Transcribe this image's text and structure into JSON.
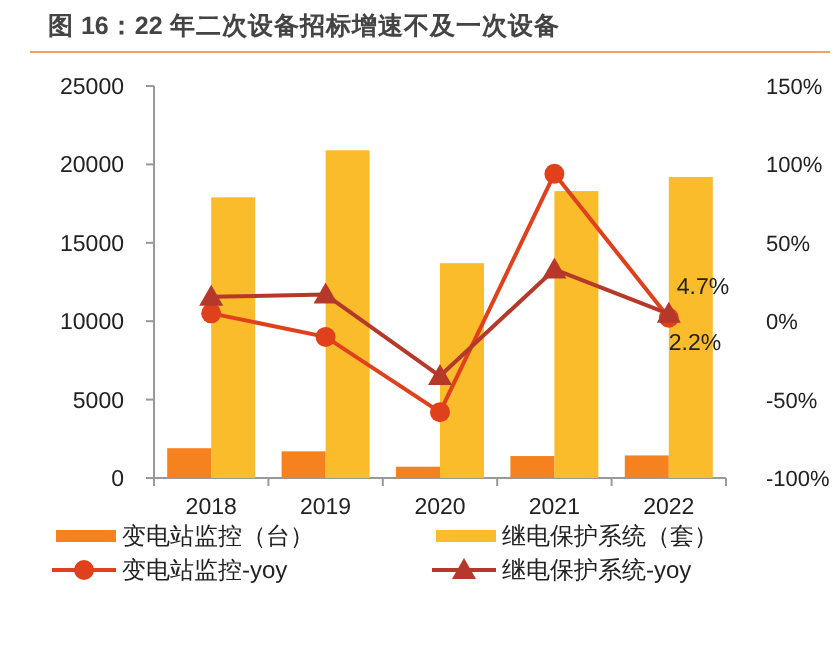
{
  "chart_data": {
    "type": "bar",
    "title": "图 16：22 年二次设备招标增速不及一次设备",
    "categories": [
      "2018",
      "2019",
      "2020",
      "2021",
      "2022"
    ],
    "series": [
      {
        "name": "变电站监控（台）",
        "color": "#f5821f",
        "values": [
          1900,
          1700,
          720,
          1400,
          1440
        ]
      },
      {
        "name": "继电保护系统（套）",
        "color": "#fbbc2c",
        "values": [
          17900,
          20900,
          13700,
          18300,
          19200
        ]
      },
      {
        "name": "变电站监控-yoy",
        "type": "line",
        "axis": "y2",
        "marker": "circle",
        "color": "#e0401b",
        "values": [
          5,
          -10,
          -58,
          94,
          2.2
        ],
        "value_labels": [
          null,
          null,
          null,
          null,
          "2.2%"
        ]
      },
      {
        "name": "继电保护系统-yoy",
        "type": "line",
        "axis": "y2",
        "marker": "triangle",
        "color": "#b5382a",
        "values": [
          15.6,
          17,
          -35,
          33,
          4.7
        ],
        "value_labels": [
          null,
          null,
          null,
          null,
          "4.7%"
        ]
      }
    ],
    "ylim": [
      0,
      25000
    ],
    "yticks": [
      0,
      5000,
      10000,
      15000,
      20000,
      25000
    ],
    "y2lim": [
      -100,
      150
    ],
    "y2ticks": [
      {
        "value": -100,
        "label": "-100%"
      },
      {
        "value": -50,
        "label": "-50%"
      },
      {
        "value": 0,
        "label": "0%"
      },
      {
        "value": 50,
        "label": "50%"
      },
      {
        "value": 100,
        "label": "100%"
      },
      {
        "value": 150,
        "label": "150%"
      }
    ],
    "grid": false,
    "legend": "bottom"
  }
}
